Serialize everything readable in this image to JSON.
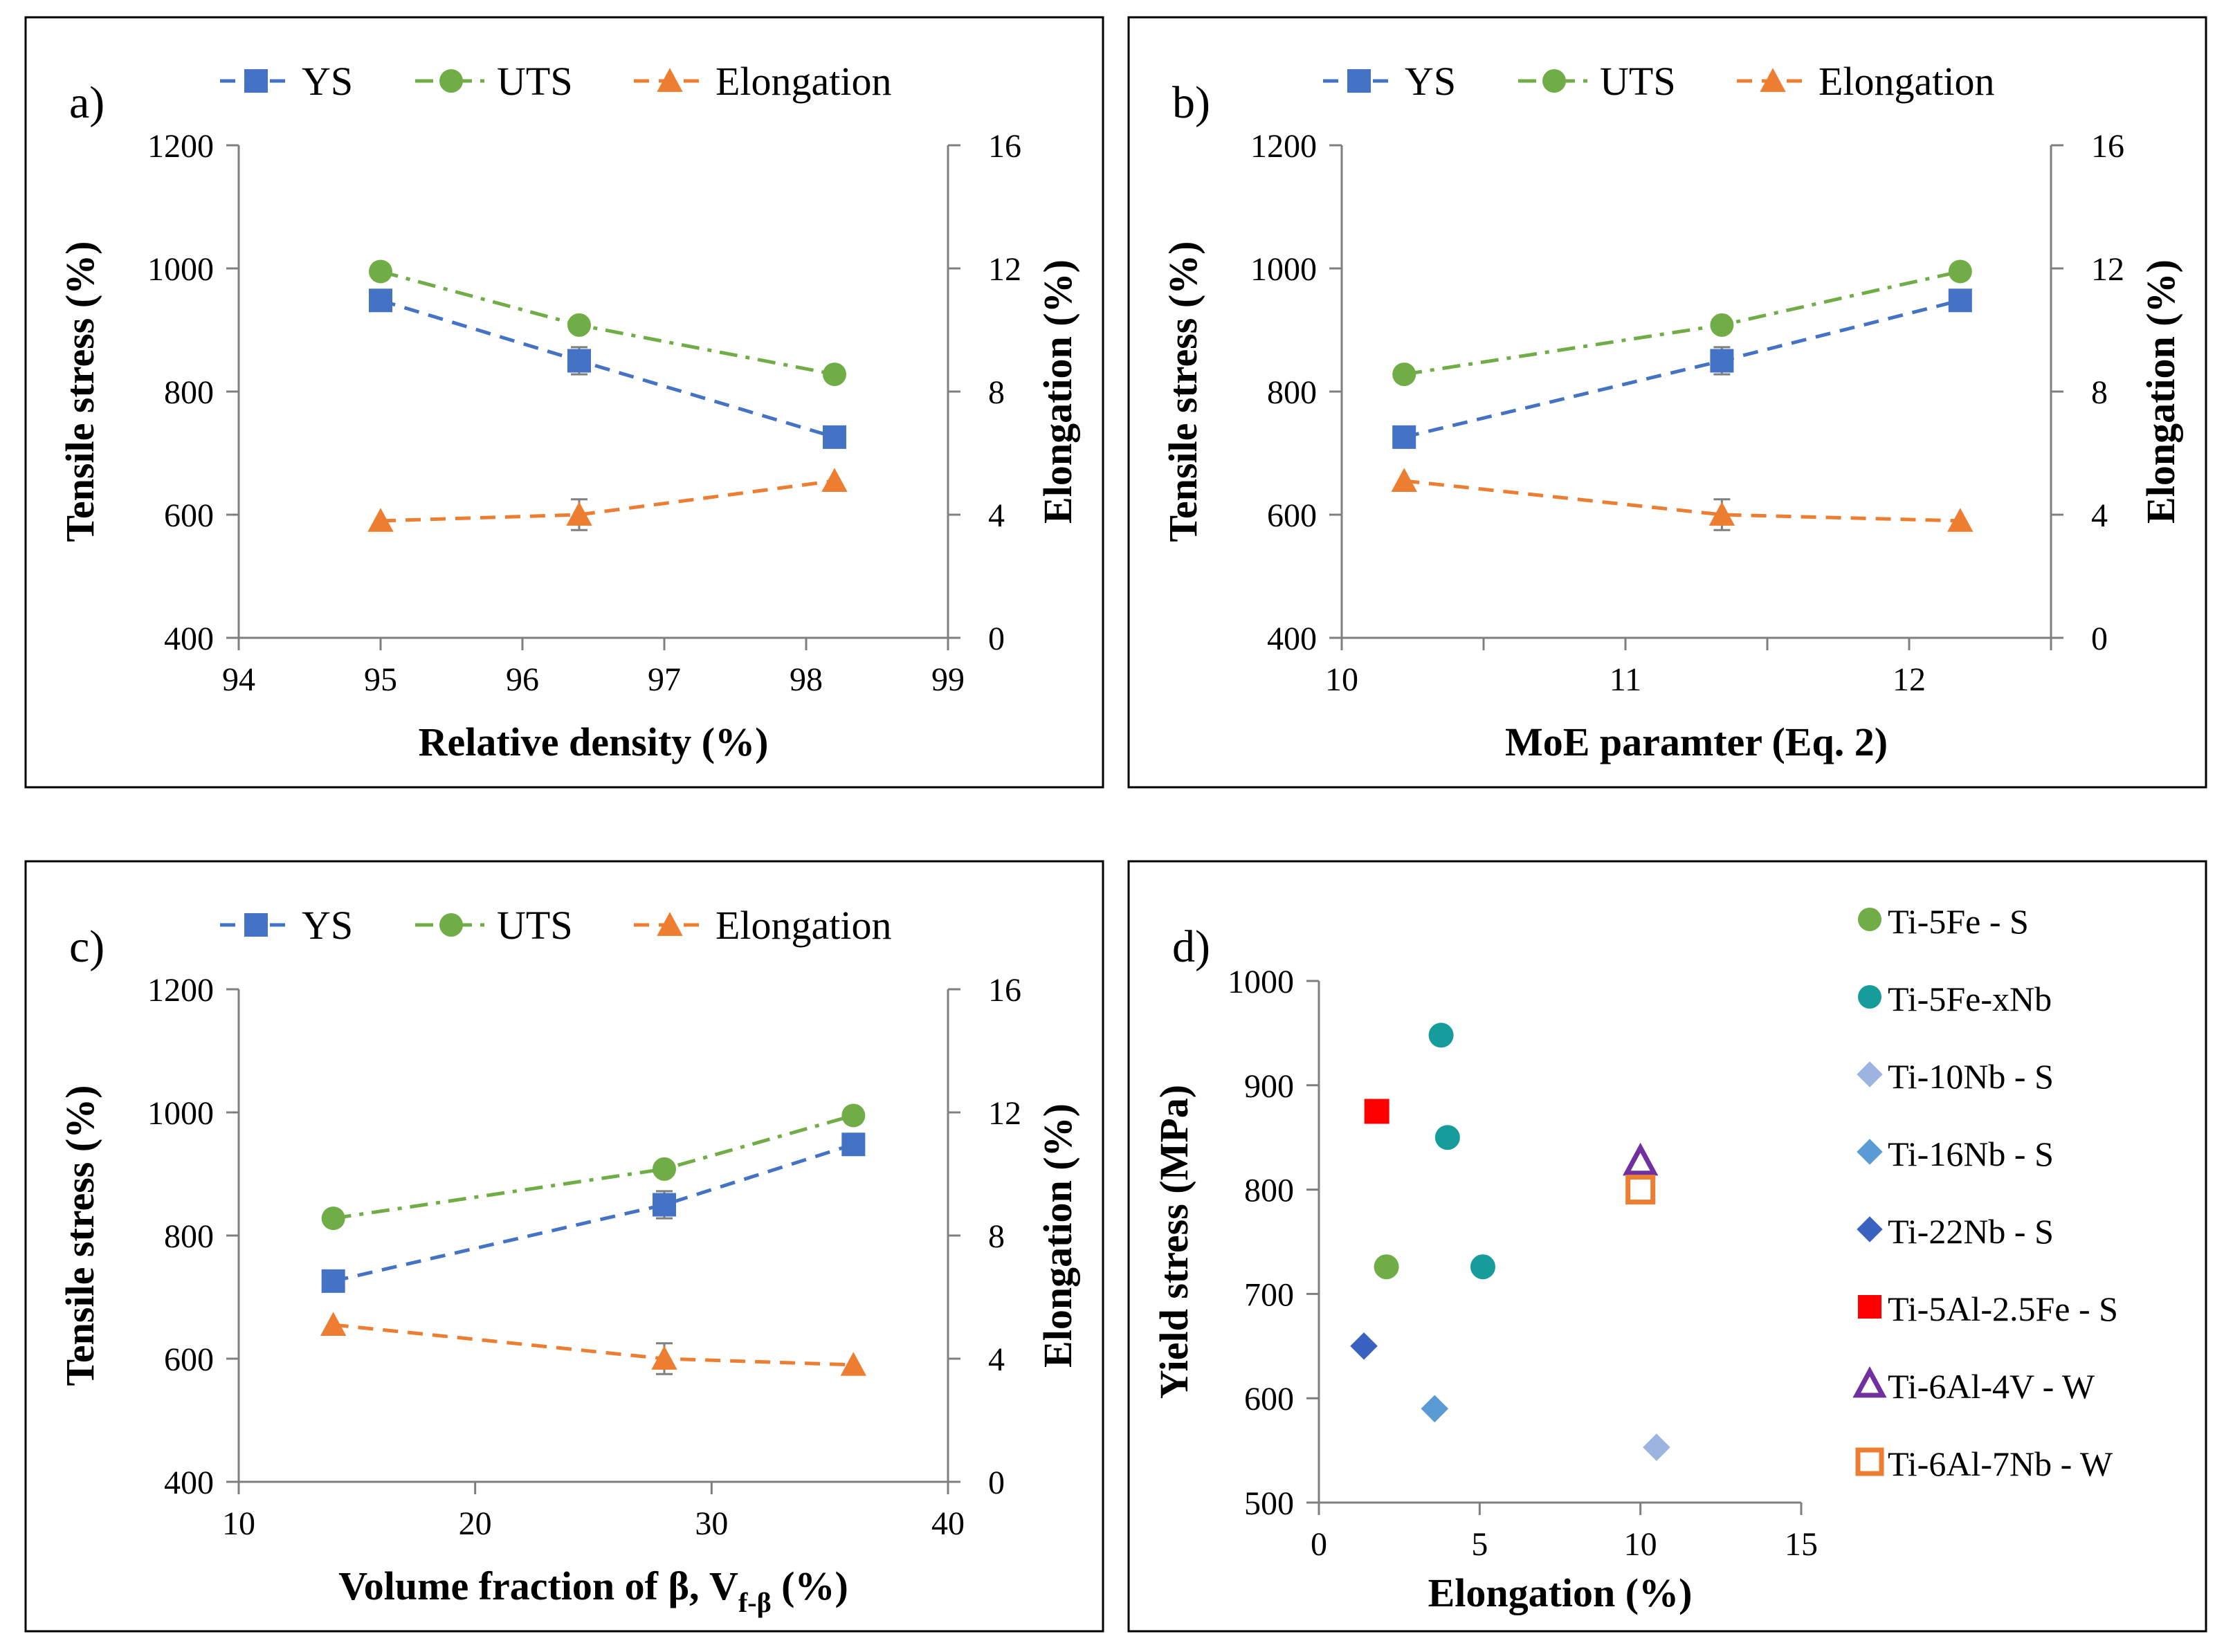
{
  "colors": {
    "ys": "#4472C4",
    "uts": "#70AD47",
    "elong": "#ED7D31",
    "axis": "#000000",
    "errorbar": "#7F7F7F",
    "frame": "#000000"
  },
  "chart_data": [
    {
      "id": "a",
      "type": "line",
      "panel_label": "a)",
      "xlabel": "Relative density (%)",
      "ylabel": "Tensile stress (%)",
      "y2label": "Elongation (%)",
      "xlim": [
        94,
        99
      ],
      "xticks": [
        94,
        95,
        96,
        97,
        98,
        99
      ],
      "xtick_labels": [
        "94",
        "95",
        "96",
        "97",
        "98",
        "99"
      ],
      "ylim": [
        400,
        1200
      ],
      "yticks": [
        400,
        600,
        800,
        1000,
        1200
      ],
      "ytick_labels": [
        "400",
        "600",
        "800",
        "1000",
        "1200"
      ],
      "y2lim": [
        0,
        16
      ],
      "y2ticks": [
        0,
        4,
        8,
        12,
        16
      ],
      "y2tick_labels": [
        "0",
        "4",
        "8",
        "12",
        "16"
      ],
      "legend": [
        "YS",
        "UTS",
        "Elongation"
      ],
      "series": [
        {
          "name": "YS",
          "axis": "left",
          "marker": "square",
          "color": "#4472C4",
          "dash": "dash",
          "x": [
            95.0,
            96.4,
            98.2
          ],
          "values": [
            948,
            850,
            726
          ],
          "err": [
            10,
            22,
            10
          ]
        },
        {
          "name": "UTS",
          "axis": "left",
          "marker": "circle",
          "color": "#70AD47",
          "dash": "dashdot",
          "x": [
            95.0,
            96.4,
            98.2
          ],
          "values": [
            995,
            908,
            828
          ],
          "err": [
            0,
            0,
            0
          ]
        },
        {
          "name": "Elongation",
          "axis": "right",
          "marker": "triangle",
          "color": "#ED7D31",
          "dash": "dash",
          "x": [
            95.0,
            96.4,
            98.2
          ],
          "values": [
            3.8,
            4.0,
            5.1
          ],
          "err": [
            0,
            0.5,
            0
          ]
        }
      ]
    },
    {
      "id": "b",
      "type": "line",
      "panel_label": "b)",
      "xlabel": "MoE paramter (Eq. 2)",
      "ylabel": "Tensile stress (%)",
      "y2label": "Elongation (%)",
      "xlim": [
        10,
        12.5
      ],
      "xticks": [
        10,
        11,
        12
      ],
      "xtick_labels": [
        "10",
        "11",
        "12"
      ],
      "ylim": [
        400,
        1200
      ],
      "yticks": [
        400,
        600,
        800,
        1000,
        1200
      ],
      "ytick_labels": [
        "400",
        "600",
        "800",
        "1000",
        "1200"
      ],
      "y2lim": [
        0,
        16
      ],
      "y2ticks": [
        0,
        4,
        8,
        12,
        16
      ],
      "y2tick_labels": [
        "0",
        "4",
        "8",
        "12",
        "16"
      ],
      "legend": [
        "YS",
        "UTS",
        "Elongation"
      ],
      "series": [
        {
          "name": "YS",
          "axis": "left",
          "marker": "square",
          "color": "#4472C4",
          "dash": "dash",
          "x": [
            10.22,
            11.34,
            12.18
          ],
          "values": [
            726,
            850,
            948
          ],
          "err": [
            10,
            22,
            10
          ]
        },
        {
          "name": "UTS",
          "axis": "left",
          "marker": "circle",
          "color": "#70AD47",
          "dash": "dashdot",
          "x": [
            10.22,
            11.34,
            12.18
          ],
          "values": [
            828,
            908,
            995
          ],
          "err": [
            0,
            0,
            0
          ]
        },
        {
          "name": "Elongation",
          "axis": "right",
          "marker": "triangle",
          "color": "#ED7D31",
          "dash": "dash",
          "x": [
            10.22,
            11.34,
            12.18
          ],
          "values": [
            5.1,
            4.0,
            3.8
          ],
          "err": [
            0,
            0.5,
            0
          ]
        }
      ]
    },
    {
      "id": "c",
      "type": "line",
      "panel_label": "c)",
      "xlabel": "Volume fraction of β, V",
      "xlabel_sub": "f-β",
      "xlabel_tail": " (%)",
      "ylabel": "Tensile stress (%)",
      "y2label": "Elongation (%)",
      "xlim": [
        10,
        40
      ],
      "xticks": [
        10,
        20,
        30,
        40
      ],
      "xtick_labels": [
        "10",
        "20",
        "30",
        "40"
      ],
      "ylim": [
        400,
        1200
      ],
      "yticks": [
        400,
        600,
        800,
        1000,
        1200
      ],
      "ytick_labels": [
        "400",
        "600",
        "800",
        "1000",
        "1200"
      ],
      "y2lim": [
        0,
        16
      ],
      "y2ticks": [
        0,
        4,
        8,
        12,
        16
      ],
      "y2tick_labels": [
        "0",
        "4",
        "8",
        "12",
        "16"
      ],
      "legend": [
        "YS",
        "UTS",
        "Elongation"
      ],
      "series": [
        {
          "name": "YS",
          "axis": "left",
          "marker": "square",
          "color": "#4472C4",
          "dash": "dash",
          "x": [
            14,
            28,
            36
          ],
          "values": [
            726,
            850,
            948
          ],
          "err": [
            10,
            22,
            10
          ]
        },
        {
          "name": "UTS",
          "axis": "left",
          "marker": "circle",
          "color": "#70AD47",
          "dash": "dashdot",
          "x": [
            14,
            28,
            36
          ],
          "values": [
            828,
            908,
            995
          ],
          "err": [
            0,
            0,
            0
          ]
        },
        {
          "name": "Elongation",
          "axis": "right",
          "marker": "triangle",
          "color": "#ED7D31",
          "dash": "dash",
          "x": [
            14,
            28,
            36
          ],
          "values": [
            5.1,
            4.0,
            3.8
          ],
          "err": [
            0,
            0.5,
            0
          ]
        }
      ]
    },
    {
      "id": "d",
      "type": "scatter",
      "panel_label": "d)",
      "xlabel": "Elongation (%)",
      "ylabel": "Yield stress (MPa)",
      "xlim": [
        0,
        15
      ],
      "xticks": [
        0,
        5,
        10,
        15
      ],
      "xtick_labels": [
        "0",
        "5",
        "10",
        "15"
      ],
      "ylim": [
        500,
        1000
      ],
      "yticks": [
        500,
        600,
        700,
        800,
        900,
        1000
      ],
      "ytick_labels": [
        "500",
        "600",
        "700",
        "800",
        "900",
        "1000"
      ],
      "series": [
        {
          "name": "Ti-5Fe - S",
          "marker": "circle",
          "color": "#70AD47",
          "fill": true,
          "x": [
            2.1
          ],
          "values": [
            726
          ]
        },
        {
          "name": "Ti-5Fe-xNb",
          "marker": "circle",
          "color": "#179C9C",
          "fill": true,
          "x": [
            3.8,
            4.0,
            5.1
          ],
          "values": [
            948,
            850,
            726
          ]
        },
        {
          "name": "Ti-10Nb - S",
          "marker": "diamond",
          "color": "#9DB3E0",
          "fill": true,
          "x": [
            10.5
          ],
          "values": [
            553
          ]
        },
        {
          "name": "Ti-16Nb - S",
          "marker": "diamond",
          "color": "#5B9BD5",
          "fill": true,
          "x": [
            3.6
          ],
          "values": [
            590
          ]
        },
        {
          "name": "Ti-22Nb - S",
          "marker": "diamond",
          "color": "#3A62C0",
          "fill": true,
          "x": [
            1.4
          ],
          "values": [
            650
          ]
        },
        {
          "name": "Ti-5Al-2.5Fe - S",
          "marker": "square",
          "color": "#FF0000",
          "fill": true,
          "x": [
            1.8
          ],
          "values": [
            875
          ]
        },
        {
          "name": "Ti-6Al-4V - W",
          "marker": "triangle",
          "color": "#7030A0",
          "fill": false,
          "x": [
            10.0
          ],
          "values": [
            827
          ]
        },
        {
          "name": "Ti-6Al-7Nb - W",
          "marker": "square",
          "color": "#ED7D31",
          "fill": false,
          "x": [
            10.0
          ],
          "values": [
            800
          ]
        }
      ]
    }
  ]
}
